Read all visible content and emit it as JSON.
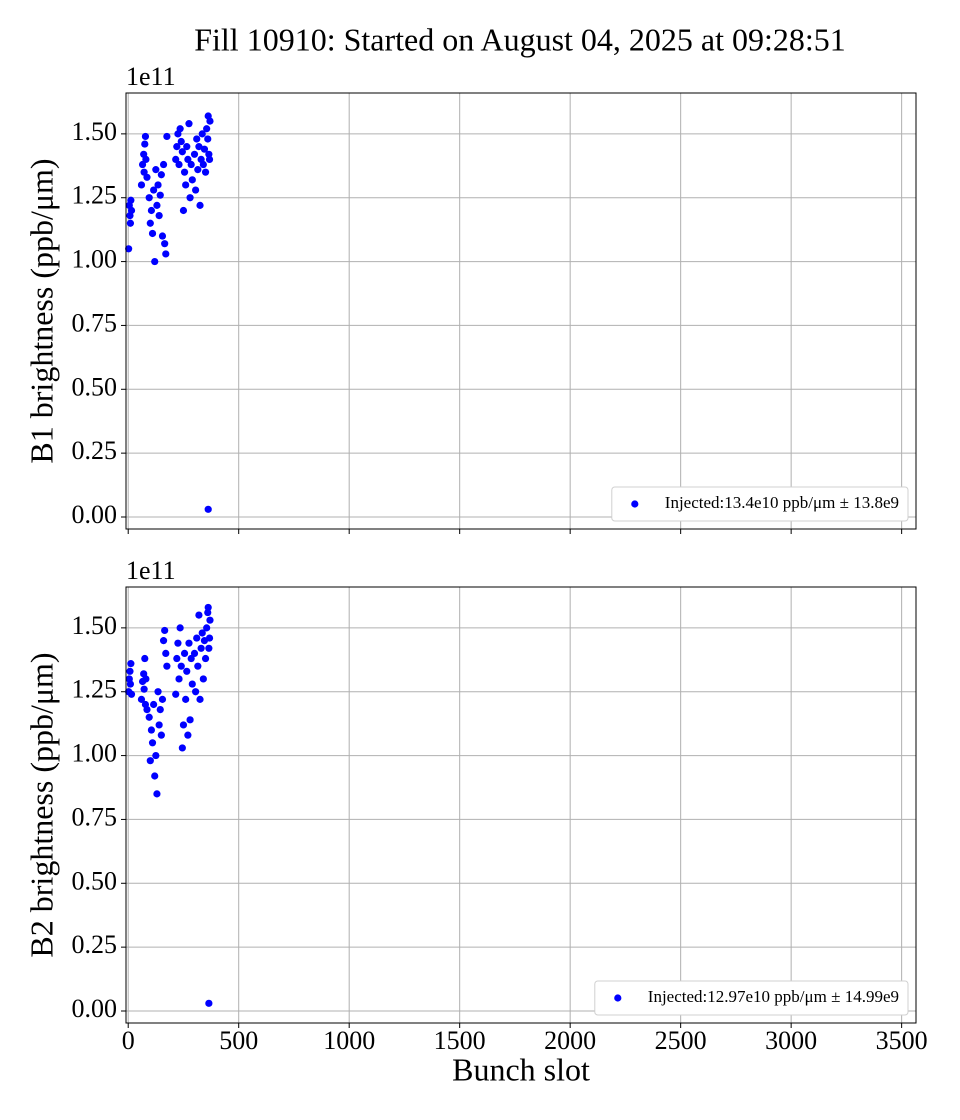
{
  "title": "Fill 10910: Started on August 04, 2025 at 09:28:51",
  "chart_data": [
    {
      "type": "scatter",
      "ylabel": "B1 brightness (ppb/μm)",
      "offset_label": "1e11",
      "xlim": [
        -10,
        3565
      ],
      "ylim": [
        -0.047,
        1.66
      ],
      "xticks": [
        0,
        500,
        1000,
        1500,
        2000,
        2500,
        3000,
        3500
      ],
      "yticks": [
        {
          "value": 0,
          "label": "0.00"
        },
        {
          "value": 0.25,
          "label": "0.25"
        },
        {
          "value": 0.5,
          "label": "0.50"
        },
        {
          "value": 0.75,
          "label": "0.75"
        },
        {
          "value": 1,
          "label": "1.00"
        },
        {
          "value": 1.25,
          "label": "1.25"
        },
        {
          "value": 1.5,
          "label": "1.50"
        }
      ],
      "grid": true,
      "legend_loc": "lower right",
      "series": [
        {
          "name": "Injected:13.4e10 ppb/μm ± 13.8e9",
          "color": "#0000ff",
          "x": [
            2,
            5,
            8,
            10,
            12,
            15,
            60,
            65,
            70,
            72,
            75,
            78,
            80,
            85,
            95,
            100,
            105,
            110,
            115,
            120,
            125,
            130,
            135,
            140,
            145,
            150,
            155,
            160,
            165,
            170,
            175,
            215,
            220,
            225,
            230,
            235,
            240,
            245,
            250,
            255,
            260,
            265,
            270,
            275,
            280,
            285,
            290,
            300,
            305,
            310,
            315,
            320,
            325,
            330,
            335,
            340,
            345,
            350,
            355,
            360,
            362,
            365,
            368,
            370,
            362
          ],
          "values": [
            1.05,
            1.22,
            1.18,
            1.15,
            1.24,
            1.2,
            1.3,
            1.38,
            1.42,
            1.35,
            1.46,
            1.49,
            1.4,
            1.33,
            1.25,
            1.15,
            1.2,
            1.11,
            1.28,
            1.0,
            1.36,
            1.22,
            1.3,
            1.18,
            1.26,
            1.34,
            1.1,
            1.38,
            1.07,
            1.03,
            1.49,
            1.4,
            1.45,
            1.5,
            1.38,
            1.52,
            1.47,
            1.43,
            1.2,
            1.35,
            1.3,
            1.45,
            1.4,
            1.54,
            1.25,
            1.38,
            1.32,
            1.42,
            1.28,
            1.48,
            1.36,
            1.45,
            1.22,
            1.4,
            1.5,
            1.38,
            1.44,
            1.35,
            1.52,
            1.48,
            1.57,
            1.42,
            1.4,
            1.55,
            0.03
          ]
        }
      ]
    },
    {
      "type": "scatter",
      "ylabel": "B2 brightness (ppb/μm)",
      "offset_label": "1e11",
      "xlabel": "Bunch slot",
      "xlim": [
        -10,
        3565
      ],
      "ylim": [
        -0.047,
        1.66
      ],
      "xticks": [
        0,
        500,
        1000,
        1500,
        2000,
        2500,
        3000,
        3500
      ],
      "yticks": [
        {
          "value": 0,
          "label": "0.00"
        },
        {
          "value": 0.25,
          "label": "0.25"
        },
        {
          "value": 0.5,
          "label": "0.50"
        },
        {
          "value": 0.75,
          "label": "0.75"
        },
        {
          "value": 1,
          "label": "1.00"
        },
        {
          "value": 1.25,
          "label": "1.25"
        },
        {
          "value": 1.5,
          "label": "1.50"
        }
      ],
      "grid": true,
      "legend_loc": "lower right",
      "series": [
        {
          "name": "Injected:12.97e10 ppb/μm ± 14.99e9",
          "color": "#0000ff",
          "x": [
            2,
            5,
            8,
            10,
            12,
            15,
            60,
            65,
            70,
            72,
            75,
            78,
            80,
            85,
            95,
            100,
            105,
            110,
            115,
            120,
            125,
            130,
            135,
            140,
            145,
            150,
            155,
            160,
            165,
            170,
            175,
            215,
            220,
            225,
            230,
            235,
            240,
            245,
            250,
            255,
            260,
            265,
            270,
            275,
            280,
            285,
            290,
            300,
            305,
            310,
            315,
            320,
            325,
            330,
            335,
            340,
            345,
            350,
            355,
            360,
            362,
            365,
            368,
            370,
            365
          ],
          "values": [
            1.25,
            1.3,
            1.33,
            1.28,
            1.36,
            1.24,
            1.22,
            1.29,
            1.32,
            1.26,
            1.38,
            1.2,
            1.3,
            1.18,
            1.15,
            0.98,
            1.1,
            1.05,
            1.2,
            0.92,
            1.0,
            0.85,
            1.25,
            1.12,
            1.18,
            1.08,
            1.22,
            1.45,
            1.49,
            1.4,
            1.35,
            1.24,
            1.38,
            1.44,
            1.3,
            1.5,
            1.35,
            1.03,
            1.12,
            1.4,
            1.22,
            1.33,
            1.08,
            1.44,
            1.14,
            1.38,
            1.28,
            1.4,
            1.25,
            1.46,
            1.35,
            1.55,
            1.22,
            1.42,
            1.48,
            1.3,
            1.45,
            1.38,
            1.5,
            1.56,
            1.58,
            1.42,
            1.46,
            1.53,
            0.03
          ]
        }
      ]
    }
  ]
}
